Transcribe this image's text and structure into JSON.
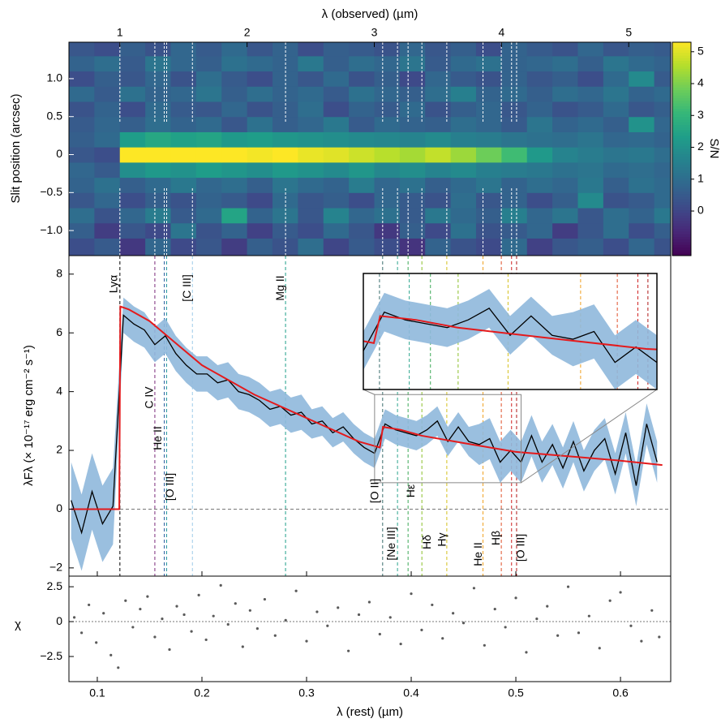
{
  "chart_data": [
    {
      "type": "heatmap",
      "x_label": "λ (observed) (µm)",
      "y_label": "Slit position (arcsec)",
      "colorbar_label": "S/N",
      "colormap": "viridis",
      "x_edges": [
        0.6,
        0.8,
        1.0,
        1.2,
        1.4,
        1.6,
        1.8,
        2.0,
        2.2,
        2.4,
        2.6,
        2.8,
        3.0,
        3.2,
        3.4,
        3.6,
        3.8,
        4.0,
        4.2,
        4.4,
        4.6,
        4.8,
        5.0,
        5.2,
        5.33
      ],
      "y_edges": [
        -1.33,
        -1.1,
        -0.9,
        -0.7,
        -0.5,
        -0.3,
        -0.1,
        0.1,
        0.3,
        0.5,
        0.7,
        0.9,
        1.1,
        1.3,
        1.48
      ],
      "z": [
        [
          0.2,
          0.5,
          -0.3,
          0.8,
          0.1,
          0.4,
          -0.2,
          0.6,
          0.3,
          1.0,
          0.0,
          0.5,
          0.2,
          -0.4,
          0.7,
          0.3,
          0.1,
          0.9,
          -0.1,
          0.4,
          0.6,
          0.2,
          0.8,
          0.3
        ],
        [
          0.6,
          -0.2,
          0.4,
          0.1,
          1.2,
          0.3,
          0.7,
          -0.1,
          0.5,
          0.2,
          0.9,
          0.4,
          -0.3,
          0.6,
          0.1,
          1.1,
          0.3,
          0.5,
          0.8,
          -0.2,
          0.4,
          1.0,
          0.2,
          0.6
        ],
        [
          1.0,
          0.3,
          0.8,
          1.4,
          0.5,
          0.9,
          2.5,
          0.7,
          1.2,
          0.4,
          1.6,
          0.8,
          1.1,
          0.5,
          1.3,
          0.9,
          0.6,
          1.5,
          0.8,
          1.2,
          0.4,
          1.0,
          0.7,
          1.3
        ],
        [
          0.4,
          0.8,
          0.2,
          0.6,
          0.3,
          0.7,
          0.5,
          0.1,
          0.9,
          0.4,
          0.6,
          0.2,
          0.8,
          0.5,
          0.3,
          1.0,
          0.4,
          0.7,
          0.2,
          0.6,
          1.8,
          0.3,
          0.5,
          0.9
        ],
        [
          0.7,
          1.1,
          0.6,
          0.9,
          1.3,
          0.8,
          1.0,
          0.6,
          1.2,
          0.9,
          0.7,
          1.4,
          0.8,
          1.1,
          0.6,
          0.9,
          1.2,
          0.7,
          1.0,
          0.8,
          1.3,
          0.6,
          1.1,
          0.9
        ],
        [
          0.8,
          0.5,
          1.9,
          2.2,
          2.0,
          2.3,
          2.1,
          1.9,
          2.2,
          2.0,
          1.8,
          2.1,
          1.7,
          1.9,
          1.6,
          1.8,
          1.5,
          1.4,
          1.3,
          1.1,
          1.2,
          0.9,
          1.0,
          0.8
        ],
        [
          0.4,
          0.2,
          5.3,
          5.3,
          5.3,
          5.3,
          5.3,
          5.2,
          5.3,
          5.1,
          5.0,
          4.8,
          4.6,
          4.4,
          4.7,
          4.3,
          3.8,
          3.2,
          2.2,
          1.6,
          1.4,
          1.2,
          1.3,
          1.0
        ],
        [
          0.6,
          0.9,
          2.3,
          2.6,
          2.4,
          2.5,
          2.2,
          2.3,
          2.1,
          2.0,
          1.9,
          1.8,
          1.7,
          1.6,
          1.8,
          1.5,
          1.4,
          1.2,
          1.1,
          1.0,
          1.2,
          0.8,
          0.9,
          0.7
        ],
        [
          0.5,
          0.8,
          0.6,
          1.0,
          0.7,
          0.9,
          0.4,
          1.1,
          0.6,
          0.8,
          1.3,
          0.5,
          0.9,
          0.7,
          0.6,
          1.0,
          0.8,
          0.5,
          1.2,
          0.7,
          0.9,
          0.6,
          2.0,
          0.8
        ],
        [
          0.3,
          0.7,
          0.2,
          0.9,
          0.5,
          0.4,
          0.8,
          0.3,
          0.6,
          1.0,
          0.2,
          0.7,
          0.5,
          0.9,
          0.3,
          0.6,
          0.8,
          0.4,
          0.7,
          0.3,
          0.5,
          0.9,
          0.4,
          0.6
        ],
        [
          0.9,
          0.5,
          1.1,
          0.7,
          0.8,
          1.2,
          0.6,
          1.0,
          0.7,
          0.9,
          0.5,
          1.1,
          0.8,
          0.6,
          1.0,
          1.5,
          0.7,
          0.9,
          0.6,
          1.0,
          0.8,
          1.2,
          0.7,
          0.9
        ],
        [
          0.2,
          0.6,
          0.4,
          0.8,
          0.3,
          1.0,
          0.5,
          0.2,
          0.7,
          0.4,
          0.9,
          0.3,
          0.6,
          0.1,
          0.8,
          0.5,
          0.3,
          0.7,
          0.4,
          0.6,
          0.2,
          0.9,
          1.8,
          0.5
        ],
        [
          0.7,
          1.0,
          0.5,
          1.2,
          0.8,
          0.6,
          1.1,
          0.9,
          0.7,
          1.3,
          0.6,
          1.0,
          0.8,
          1.2,
          0.5,
          0.9,
          1.1,
          0.7,
          0.8,
          1.0,
          0.6,
          1.2,
          0.9,
          0.7
        ],
        [
          0.4,
          0.2,
          0.6,
          0.3,
          0.8,
          0.5,
          0.9,
          0.4,
          0.7,
          0.2,
          0.6,
          0.5,
          0.3,
          0.8,
          0.4,
          0.6,
          0.2,
          0.7,
          0.5,
          0.3,
          0.8,
          0.4,
          0.6,
          0.5
        ]
      ],
      "xlim": [
        0.6,
        5.33
      ],
      "xticks": [
        1,
        2,
        3,
        4,
        5
      ],
      "ylim": [
        -1.33,
        1.48
      ],
      "yticks": [
        {
          "value": -1,
          "label": "−1.0"
        },
        {
          "value": -0.5,
          "label": "−0.5"
        },
        0,
        0.5,
        {
          "value": 1,
          "label": "1.0"
        }
      ],
      "clim": [
        -1.4,
        5.3
      ],
      "cticks": [
        0,
        1,
        2,
        3,
        4,
        5
      ]
    },
    {
      "type": "line",
      "y_label": "λFλ (× 10⁻¹⁷ erg cm⁻² s⁻¹)",
      "x": [
        0.075,
        0.085,
        0.095,
        0.105,
        0.115,
        0.125,
        0.135,
        0.145,
        0.155,
        0.165,
        0.175,
        0.185,
        0.195,
        0.205,
        0.215,
        0.225,
        0.235,
        0.245,
        0.255,
        0.265,
        0.275,
        0.285,
        0.295,
        0.305,
        0.315,
        0.325,
        0.335,
        0.345,
        0.355,
        0.365,
        0.375,
        0.385,
        0.395,
        0.405,
        0.415,
        0.425,
        0.435,
        0.445,
        0.455,
        0.465,
        0.475,
        0.485,
        0.495,
        0.505,
        0.515,
        0.525,
        0.535,
        0.545,
        0.555,
        0.565,
        0.575,
        0.585,
        0.595,
        0.605,
        0.615,
        0.625,
        0.635
      ],
      "series": [
        {
          "color": "#000000",
          "error_color": "#8fb8dc",
          "values": [
            0.3,
            -0.8,
            0.6,
            -0.5,
            0.1,
            6.6,
            6.3,
            6.1,
            5.6,
            5.9,
            5.3,
            4.9,
            4.6,
            4.6,
            4.3,
            4.4,
            4.0,
            3.9,
            3.7,
            3.4,
            3.5,
            3.2,
            3.3,
            2.9,
            3.0,
            2.6,
            2.8,
            2.4,
            2.1,
            1.9,
            2.9,
            2.7,
            2.6,
            2.5,
            2.7,
            3.0,
            2.3,
            2.8,
            2.3,
            2.2,
            2.4,
            1.6,
            2.0,
            1.6,
            2.5,
            1.6,
            2.2,
            1.4,
            2.3,
            1.3,
            2.0,
            2.4,
            1.2,
            2.6,
            0.8,
            2.9,
            1.6
          ],
          "error": [
            1.3,
            1.3,
            1.3,
            1.3,
            1.3,
            0.6,
            0.6,
            0.6,
            0.6,
            0.6,
            0.6,
            0.6,
            0.6,
            0.6,
            0.6,
            0.6,
            0.6,
            0.6,
            0.6,
            0.6,
            0.6,
            0.6,
            0.6,
            0.5,
            0.5,
            0.5,
            0.5,
            0.5,
            0.5,
            0.5,
            0.5,
            0.5,
            0.5,
            0.5,
            0.5,
            0.5,
            0.5,
            0.5,
            0.5,
            0.7,
            0.7,
            0.7,
            0.7,
            0.7,
            0.7,
            0.7,
            0.7,
            0.7,
            0.7,
            0.7,
            0.7,
            0.7,
            0.7,
            0.7,
            0.7,
            0.7,
            0.7
          ]
        }
      ],
      "model": {
        "color": "#e41a1c",
        "x": [
          0.075,
          0.121,
          0.122,
          0.13,
          0.15,
          0.17,
          0.2,
          0.25,
          0.3,
          0.35,
          0.37,
          0.373,
          0.39,
          0.41,
          0.45,
          0.5,
          0.55,
          0.6,
          0.64
        ],
        "values": [
          0,
          0,
          6.9,
          6.8,
          6.4,
          5.8,
          4.9,
          3.9,
          3.1,
          2.3,
          2.1,
          2.8,
          2.7,
          2.5,
          2.25,
          1.95,
          1.8,
          1.65,
          1.5
        ]
      },
      "lines": [
        {
          "label": "Lyα",
          "x": 0.1216,
          "color": "#000000"
        },
        {
          "label": "C IV",
          "x": 0.155,
          "color": "#7b2a7b"
        },
        {
          "label": "He II",
          "x": 0.164,
          "color": "#2b5fa0"
        },
        {
          "label": "[O III]",
          "x": 0.1663,
          "color": "#2a9aa0"
        },
        {
          "label": "[C III]",
          "x": 0.1909,
          "color": "#9ecae9"
        },
        {
          "label": "Mg II",
          "x": 0.2799,
          "color": "#1f9e89"
        },
        {
          "label": "[O II]",
          "x": 0.3727,
          "color": "#3b6e6e"
        },
        {
          "label": "[Ne III]",
          "x": 0.3869,
          "color": "#2ca58d"
        },
        {
          "label": "Hε",
          "x": 0.397,
          "color": "#3aa856"
        },
        {
          "label": "Hδ",
          "x": 0.4102,
          "color": "#8bbf2a"
        },
        {
          "label": "Hγ",
          "x": 0.434,
          "color": "#d4c01c"
        },
        {
          "label": "He II",
          "x": 0.4686,
          "color": "#f0a020"
        },
        {
          "label": "Hβ",
          "x": 0.4861,
          "color": "#e0502a"
        },
        {
          "x": 0.4959,
          "color": "#d02020"
        },
        {
          "label": "[O III]",
          "x": 0.5007,
          "color": "#b01818"
        }
      ],
      "xlim": [
        0.0729,
        0.648
      ],
      "ylim": [
        -2.28,
        8.63
      ],
      "yticks": [
        {
          "value": -2,
          "label": "−2"
        },
        0,
        2,
        4,
        6,
        8
      ],
      "inset": {
        "xlim": [
          0.365,
          0.505
        ],
        "ylim": [
          0.9,
          3.9
        ]
      }
    },
    {
      "type": "scatter",
      "y_label": "χ",
      "x_label": "λ (rest) (µm)",
      "color": "#5a5a5a",
      "x": [
        0.078,
        0.085,
        0.092,
        0.099,
        0.106,
        0.113,
        0.12,
        0.127,
        0.134,
        0.141,
        0.148,
        0.155,
        0.162,
        0.169,
        0.176,
        0.183,
        0.19,
        0.197,
        0.204,
        0.211,
        0.218,
        0.225,
        0.232,
        0.239,
        0.246,
        0.253,
        0.26,
        0.27,
        0.28,
        0.29,
        0.3,
        0.31,
        0.32,
        0.33,
        0.34,
        0.35,
        0.36,
        0.37,
        0.38,
        0.39,
        0.4,
        0.41,
        0.42,
        0.43,
        0.44,
        0.45,
        0.46,
        0.47,
        0.48,
        0.49,
        0.5,
        0.51,
        0.52,
        0.53,
        0.54,
        0.55,
        0.56,
        0.57,
        0.58,
        0.59,
        0.6,
        0.61,
        0.62,
        0.63,
        0.637
      ],
      "values": [
        0.3,
        -0.8,
        1.2,
        -1.5,
        0.6,
        -2.4,
        -3.3,
        1.5,
        -0.4,
        0.9,
        1.8,
        -1.1,
        0.2,
        -2.0,
        1.1,
        0.5,
        -0.7,
        1.9,
        -1.3,
        0.4,
        2.6,
        -0.2,
        1.3,
        -1.8,
        0.8,
        -0.5,
        1.6,
        -1.0,
        0.1,
        2.2,
        -1.4,
        0.7,
        -0.3,
        1.0,
        -2.1,
        0.5,
        1.4,
        -0.9,
        0.3,
        -1.6,
        2.0,
        -0.6,
        1.2,
        -1.2,
        0.6,
        -0.1,
        2.4,
        -1.7,
        0.9,
        -0.4,
        1.7,
        -2.2,
        0.2,
        1.1,
        -1.0,
        2.5,
        -0.8,
        0.4,
        -1.9,
        1.5,
        2.1,
        -0.3,
        -1.4,
        0.8,
        -1.1
      ],
      "xlim": [
        0.0729,
        0.648
      ],
      "xticks": [
        0.1,
        0.2,
        0.3,
        0.4,
        0.5,
        0.6
      ],
      "ylim": [
        -4.3,
        3.26
      ],
      "yticks": [
        {
          "value": -2.5,
          "label": "−2.5"
        },
        0,
        2.5
      ]
    }
  ]
}
